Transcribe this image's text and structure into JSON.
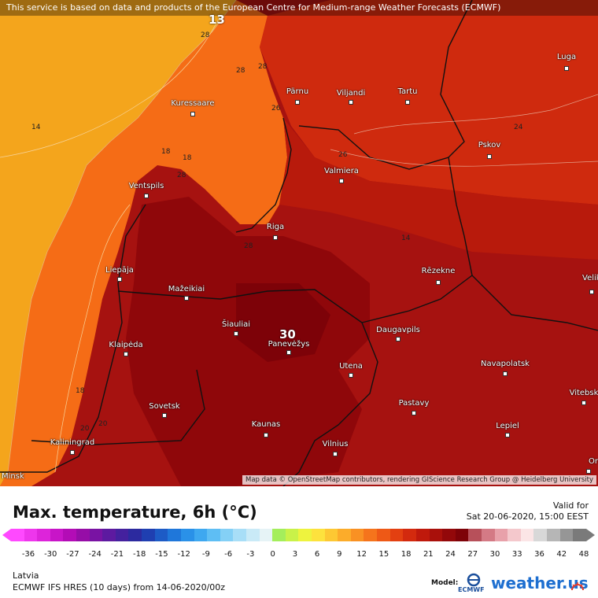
{
  "map": {
    "banner": "This service is based on data and products of the European Centre for Medium-range Weather Forecasts (ECMWF)",
    "credit": "Map data © OpenStreetMap contributors, rendering GIScience Research Group @ Heidelberg University",
    "cities": [
      {
        "name": "Luga"
      },
      {
        "name": "Pärnu"
      },
      {
        "name": "Viljandi"
      },
      {
        "name": "Tartu"
      },
      {
        "name": "Kuressaare"
      },
      {
        "name": "Pskov"
      },
      {
        "name": "Valmiera"
      },
      {
        "name": "Ventspils"
      },
      {
        "name": "Riga"
      },
      {
        "name": "Rēzekne"
      },
      {
        "name": "Liepāja"
      },
      {
        "name": "Mažeikiai"
      },
      {
        "name": "Šiauliai"
      },
      {
        "name": "Panevėžys"
      },
      {
        "name": "Daugavpils"
      },
      {
        "name": "Klaipėda"
      },
      {
        "name": "Navapolatsk"
      },
      {
        "name": "Utena"
      },
      {
        "name": "Vitebsk"
      },
      {
        "name": "Sovetsk"
      },
      {
        "name": "Pastavy"
      },
      {
        "name": "Kaunas"
      },
      {
        "name": "Lepiel"
      },
      {
        "name": "Kaliningrad"
      },
      {
        "name": "Vilnius"
      },
      {
        "name": "Orsha"
      },
      {
        "name": "Velikiye Luki"
      },
      {
        "name": "Minsk"
      }
    ],
    "contour_labels": [
      "28",
      "28",
      "14",
      "18",
      "18",
      "28",
      "26",
      "24",
      "26",
      "28",
      "18",
      "20",
      "28",
      "14",
      "20"
    ],
    "big_labels": [
      "13",
      "30"
    ]
  },
  "legend": {
    "title": "Max. temperature, 6h (°C)",
    "valid_label": "Valid for",
    "valid_value": "Sat 20-06-2020, 15:00 EEST",
    "ticks": [
      "-36",
      "-30",
      "-27",
      "-24",
      "-21",
      "-18",
      "-15",
      "-12",
      "-9",
      "-6",
      "-3",
      "0",
      "3",
      "6",
      "9",
      "12",
      "15",
      "18",
      "21",
      "24",
      "27",
      "30",
      "33",
      "36",
      "42",
      "48"
    ],
    "colors": [
      "#ff49ff",
      "#ee36ec",
      "#dd24da",
      "#c815c8",
      "#b30cb6",
      "#960da7",
      "#7913a3",
      "#5d1aa0",
      "#44219e",
      "#2c2a9f",
      "#1f3fb1",
      "#1d5bc6",
      "#1f77da",
      "#2a91e8",
      "#3ea8f0",
      "#5ebef4",
      "#84d0f6",
      "#a8def7",
      "#c9eaf7",
      "#e6f3f6",
      "#a4ee5c",
      "#c9f249",
      "#eef33e",
      "#fde23d",
      "#fdc833",
      "#fcac2a",
      "#f99123",
      "#f5741c",
      "#ee5916",
      "#e34011",
      "#d32a0e",
      "#bf190c",
      "#a9100b",
      "#93080a",
      "#7e0208",
      "#b7505a",
      "#d47a85",
      "#e8a1aa",
      "#f4c8cc",
      "#fbe5e6",
      "#d8d8d8",
      "#b6b6b6",
      "#969696",
      "#7a7a7a"
    ],
    "region": "Latvia",
    "model_run": "ECMWF IFS HRES (10 days) from 14-06-2020/00z",
    "model_label": "Model:",
    "ecmwf_text": "ECMWF",
    "brand": "weather.us"
  }
}
